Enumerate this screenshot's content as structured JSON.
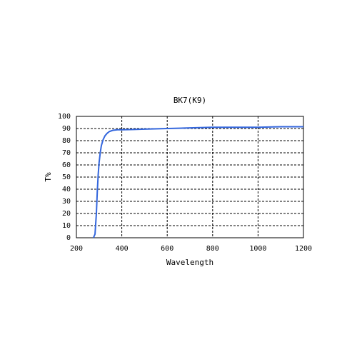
{
  "chart_data": {
    "type": "line",
    "title": "BK7(K9)",
    "x_label": "Wavelength",
    "y_label": "T%",
    "x": [
      275,
      282,
      288,
      292,
      296,
      300,
      305,
      310,
      318,
      326,
      335,
      345,
      360,
      380,
      400,
      450,
      500,
      600,
      700,
      800,
      900,
      1000,
      1100,
      1200
    ],
    "values": [
      0,
      3,
      20,
      38,
      52,
      62,
      70,
      76,
      81,
      84,
      86,
      87.5,
      88.5,
      89,
      89,
      89.2,
      89.5,
      90,
      90.5,
      91,
      91,
      91,
      91.5,
      91.5
    ],
    "color": "#3366dd",
    "xlim": [
      200,
      1200
    ],
    "xticks": [
      200,
      400,
      600,
      800,
      1000,
      1200
    ],
    "ylim": [
      0,
      100
    ],
    "yticks": [
      0,
      10,
      20,
      30,
      40,
      50,
      60,
      70,
      80,
      90,
      100
    ],
    "grid": true
  }
}
